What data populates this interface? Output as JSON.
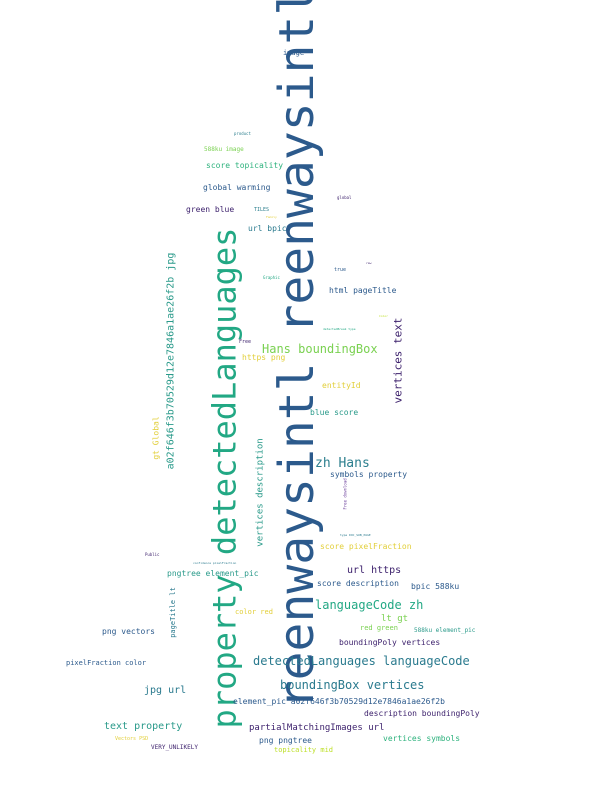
{
  "words": [
    {
      "text": "reenwaysintl reenwaysintl",
      "color": "#2c5a8c"
    },
    {
      "text": "property detectedLanguages",
      "color": "#22a884"
    },
    {
      "text": "a02f646f3b70529d12e7846a1ae26f2b jpg",
      "color": "#2a9a8a"
    },
    {
      "text": "vertices text",
      "color": "#3b1f6b"
    },
    {
      "text": "vertices description",
      "color": "#2a9a8a"
    },
    {
      "text": "gt Global",
      "color": "#e2cf3a"
    },
    {
      "text": "pageTitle lt",
      "color": "#2a7a8e"
    },
    {
      "text": "Free download",
      "color": "#6a3d9a"
    },
    {
      "text": "image",
      "color": "#2c5a8c"
    },
    {
      "text": "product",
      "color": "#2c7f8e"
    },
    {
      "text": "588ku image",
      "color": "#7ad151"
    },
    {
      "text": "score topicality",
      "color": "#2db27d"
    },
    {
      "text": "global warming",
      "color": "#2c5a8c"
    },
    {
      "text": "global",
      "color": "#3b1f6b"
    },
    {
      "text": "green blue",
      "color": "#3b1f6b"
    },
    {
      "text": "TILES",
      "color": "#2c7f8e"
    },
    {
      "text": "Family",
      "color": "#e2cf3a"
    },
    {
      "text": "url bpic",
      "color": "#2a7a8e"
    },
    {
      "text": "true",
      "color": "#2c5a8c"
    },
    {
      "text": "raw",
      "color": "#3b1f6b"
    },
    {
      "text": "Graphic",
      "color": "#22a884"
    },
    {
      "text": "html pageTitle",
      "color": "#2c5a8c"
    },
    {
      "text": "Color",
      "color": "#bddf26"
    },
    {
      "text": "detectedBreak type",
      "color": "#22a884"
    },
    {
      "text": "Free",
      "color": "#3b1f6b"
    },
    {
      "text": "Hans boundingBox",
      "color": "#7ad151"
    },
    {
      "text": "https png",
      "color": "#e2cf3a"
    },
    {
      "text": "entityId",
      "color": "#e2cf3a"
    },
    {
      "text": "blue score",
      "color": "#2a9a8a"
    },
    {
      "text": "zh Hans",
      "color": "#2c7f8e"
    },
    {
      "text": "symbols property",
      "color": "#2c5a8c"
    },
    {
      "text": "type DOC_SUB_PAGE",
      "color": "#2a7a8e"
    },
    {
      "text": "score pixelFraction",
      "color": "#e2cf3a"
    },
    {
      "text": "Public",
      "color": "#3b1f6b"
    },
    {
      "text": "confidence pixelFraction",
      "color": "#2a7a8e"
    },
    {
      "text": "pngtree element_pic",
      "color": "#2a9a8a"
    },
    {
      "text": "url https",
      "color": "#3b1f6b"
    },
    {
      "text": "score description",
      "color": "#2c5a8c"
    },
    {
      "text": "bpic 588ku",
      "color": "#2c5a8c"
    },
    {
      "text": "languageCode zh",
      "color": "#22a884"
    },
    {
      "text": "lt gt",
      "color": "#7ad151"
    },
    {
      "text": "color red",
      "color": "#e2cf3a"
    },
    {
      "text": "red green",
      "color": "#7ad151"
    },
    {
      "text": "588ku element_pic",
      "color": "#2a9a8a"
    },
    {
      "text": "png vectors",
      "color": "#2c5a8c"
    },
    {
      "text": "boundingPoly vertices",
      "color": "#3b1f6b"
    },
    {
      "text": "pixelFraction color",
      "color": "#2c5a8c"
    },
    {
      "text": "detectedLanguages languageCode",
      "color": "#2a7a8e"
    },
    {
      "text": "boundingBox vertices",
      "color": "#2a7a8e"
    },
    {
      "text": "jpg url",
      "color": "#2a7a8e"
    },
    {
      "text": "element_pic a02f646f3b70529d12e7846a1ae26f2b",
      "color": "#2c5a8c"
    },
    {
      "text": "description boundingPoly",
      "color": "#3b1f6b"
    },
    {
      "text": "text property",
      "color": "#2a9a8a"
    },
    {
      "text": "partialMatchingImages url",
      "color": "#3b1f6b"
    },
    {
      "text": "Vectors PSD",
      "color": "#e2cf3a"
    },
    {
      "text": "png pngtree",
      "color": "#2c5a8c"
    },
    {
      "text": "vertices symbols",
      "color": "#2db27d"
    },
    {
      "text": "VERY_UNLIKELY",
      "color": "#3b1f6b"
    },
    {
      "text": "topicality mid",
      "color": "#bddf26"
    }
  ]
}
